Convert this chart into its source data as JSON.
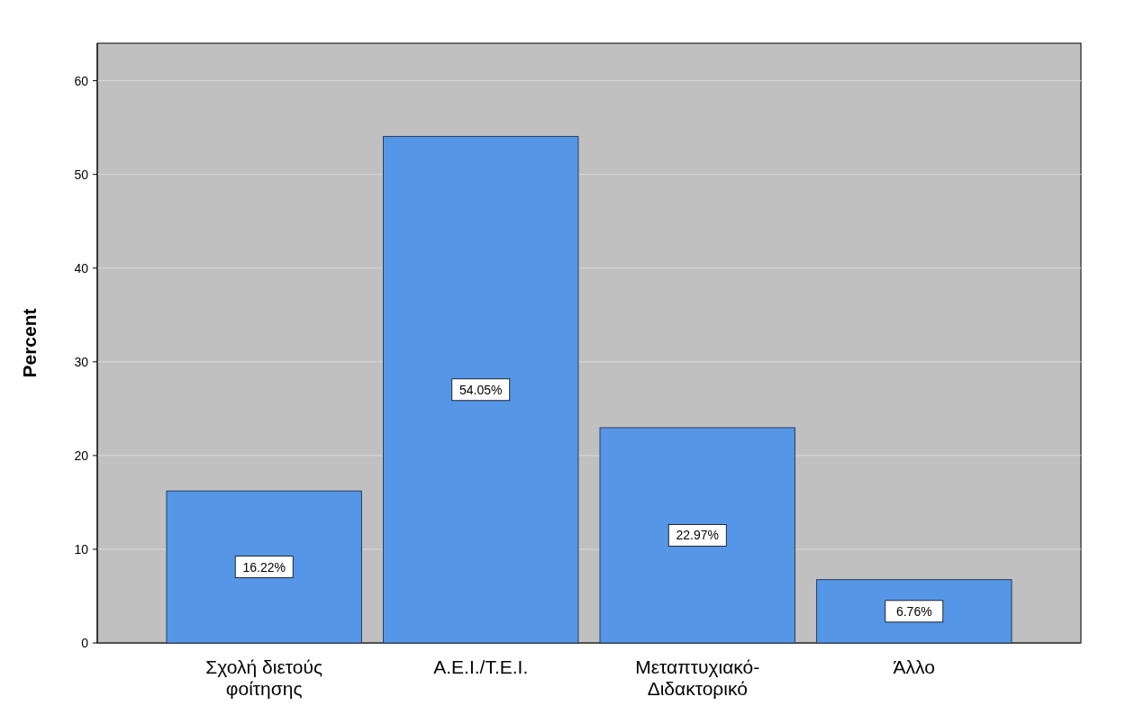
{
  "chart_data": {
    "type": "bar",
    "ylabel": "Percent",
    "categories": [
      "Σχολή διετούς φοίτησης",
      "Α.Ε.Ι./Τ.Ε.Ι.",
      "Μεταπτυχιακό-Διδακτορικό",
      "Άλλο"
    ],
    "values": [
      16.22,
      54.05,
      22.97,
      6.76
    ],
    "value_labels": [
      "16.22%",
      "54.05%",
      "22.97%",
      "6.76%"
    ],
    "color": "#5596e6",
    "ylim": [
      0,
      64
    ],
    "yticks": [
      0,
      10,
      20,
      30,
      40,
      50,
      60
    ],
    "grid": "y"
  }
}
